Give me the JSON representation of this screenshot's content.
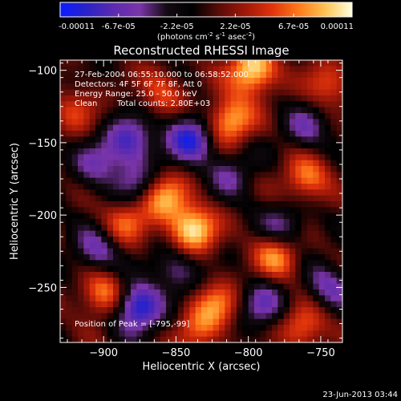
{
  "chart_data": {
    "type": "heatmap",
    "title": "Reconstructed RHESSI Image",
    "xlabel": "Heliocentric X (arcsec)",
    "ylabel": "Heliocentric Y (arcsec)",
    "xlim": [
      -930,
      -735
    ],
    "ylim": [
      -288,
      -93
    ],
    "xticks": [
      -900,
      -850,
      -800,
      -750
    ],
    "yticks": [
      -100,
      -150,
      -200,
      -250
    ],
    "colorbar": {
      "ticks": [
        "-0.00011",
        "-6.7e-05",
        "-2.2e-05",
        "2.2e-05",
        "6.7e-05",
        "0.00011"
      ],
      "unit_parts": [
        "(photons cm",
        "-2",
        " s",
        "-1",
        " asec",
        "-2",
        ")"
      ],
      "colors": [
        "#0a1cff",
        "#2b22c8",
        "#5b2bb0",
        "#7a35a8",
        "#140a12",
        "#000000",
        "#5a0c08",
        "#a01808",
        "#e0340c",
        "#ff7a1a",
        "#ffc454",
        "#ffffe0"
      ]
    },
    "annotations": {
      "time_range": "27-Feb-2004 06:55:10.000 to 06:58:52.000",
      "detectors": "Detectors: 4F 5F 6F 7F 8F, Att 0",
      "energy_range": "Energy Range: 25.0 - 50.0 keV",
      "algorithm": "Clean",
      "total_counts": "Total counts: 2.80E+03",
      "peak": "Position of Peak = [-795,-99]"
    },
    "peak_position": [
      -795,
      -99
    ],
    "features": [
      {
        "x": -882,
        "y": -148,
        "v": -0.7
      },
      {
        "x": -840,
        "y": -147,
        "v": -0.85
      },
      {
        "x": -877,
        "y": -264,
        "v": -1.0
      },
      {
        "x": -878,
        "y": -178,
        "v": -0.45
      },
      {
        "x": -905,
        "y": -225,
        "v": -0.55
      },
      {
        "x": -775,
        "y": -208,
        "v": -0.5
      },
      {
        "x": -760,
        "y": -140,
        "v": -0.45
      },
      {
        "x": -790,
        "y": -262,
        "v": -0.55
      },
      {
        "x": -745,
        "y": -250,
        "v": -0.5
      },
      {
        "x": -850,
        "y": -238,
        "v": -0.45
      },
      {
        "x": -812,
        "y": -172,
        "v": -0.4
      },
      {
        "x": -905,
        "y": -165,
        "v": -0.45
      },
      {
        "x": -838,
        "y": -210,
        "v": 0.95
      },
      {
        "x": -813,
        "y": -135,
        "v": 0.85
      },
      {
        "x": -797,
        "y": -100,
        "v": 1.0
      },
      {
        "x": -858,
        "y": -188,
        "v": 0.75
      },
      {
        "x": -900,
        "y": -255,
        "v": 0.7
      },
      {
        "x": -780,
        "y": -228,
        "v": 0.7
      },
      {
        "x": -760,
        "y": -175,
        "v": 0.65
      },
      {
        "x": -822,
        "y": -262,
        "v": 0.6
      },
      {
        "x": -885,
        "y": -205,
        "v": 0.55
      },
      {
        "x": -762,
        "y": -277,
        "v": 0.6
      },
      {
        "x": -860,
        "y": -115,
        "v": 0.45
      },
      {
        "x": -745,
        "y": -110,
        "v": 0.5
      },
      {
        "x": -920,
        "y": -128,
        "v": 0.4
      },
      {
        "x": -835,
        "y": -280,
        "v": 0.45
      }
    ]
  },
  "footer": {
    "timestamp": "23-Jun-2013 03:44"
  }
}
